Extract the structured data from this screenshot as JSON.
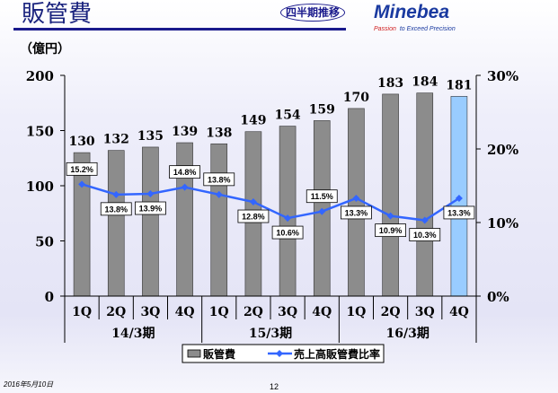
{
  "header": {
    "title": "販管費",
    "badge": "四半期推移",
    "logo": "Minebea",
    "tagline_a": "Passion",
    "tagline_b": " to Exceed Precision"
  },
  "unit": "（億円）",
  "footer": {
    "date": "2016年5月10日",
    "page": "12"
  },
  "colors": {
    "bar": "#8c8c8c",
    "bar_highlight": "#99ccff",
    "line": "#3366ff"
  },
  "chart_data": {
    "type": "bar",
    "categories": [
      "1Q",
      "2Q",
      "3Q",
      "4Q",
      "1Q",
      "2Q",
      "3Q",
      "4Q",
      "1Q",
      "2Q",
      "3Q",
      "4Q"
    ],
    "groups": [
      "14/3期",
      "15/3期",
      "16/3期"
    ],
    "series": [
      {
        "name": "販管費",
        "type": "bar",
        "values": [
          130,
          132,
          135,
          139,
          138,
          149,
          154,
          159,
          170,
          183,
          184,
          181
        ]
      },
      {
        "name": "売上高販管費比率",
        "type": "line",
        "axis": "right",
        "values": [
          15.2,
          13.8,
          13.9,
          14.8,
          13.8,
          12.8,
          10.6,
          11.5,
          13.3,
          10.9,
          10.3,
          13.3
        ]
      }
    ],
    "ylim": [
      0,
      200
    ],
    "yticks": [
      0,
      50,
      100,
      150,
      200
    ],
    "y2lim": [
      0,
      30
    ],
    "y2ticks": [
      "0%",
      "10%",
      "20%",
      "30%"
    ],
    "legend": "bottom"
  }
}
